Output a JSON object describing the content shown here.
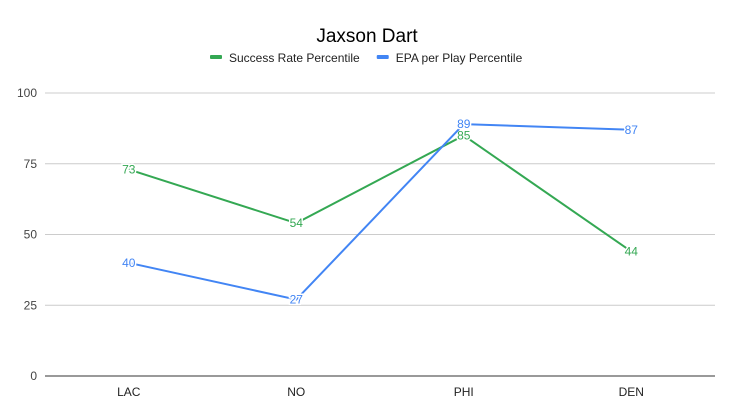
{
  "chart_data": {
    "type": "line",
    "title": "Jaxson Dart",
    "categories": [
      "LAC",
      "NO",
      "PHI",
      "DEN"
    ],
    "series": [
      {
        "name": "Success Rate Percentile",
        "color": "#34a853",
        "values": [
          73,
          54,
          85,
          44
        ]
      },
      {
        "name": "EPA per Play Percentile",
        "color": "#4285f4",
        "values": [
          40,
          27,
          89,
          87
        ]
      }
    ],
    "ylim": [
      0,
      100
    ],
    "yticks": [
      0,
      25,
      50,
      75,
      100
    ],
    "xlabel": "",
    "ylabel": "",
    "grid": true,
    "legend": "top-center"
  }
}
